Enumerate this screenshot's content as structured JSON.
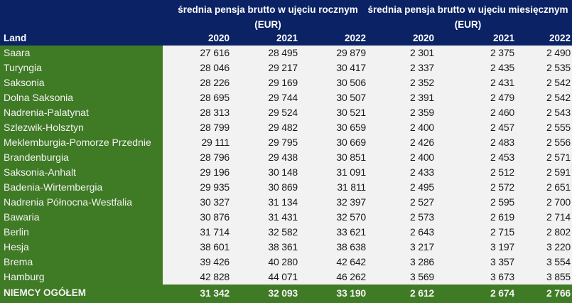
{
  "header": {
    "land_label": "Land",
    "group_annual": {
      "line1": "średnia pensja brutto w ujęciu rocznym",
      "line2": "(EUR)"
    },
    "group_monthly": {
      "line1": "średnia pensja brutto w ujęciu miesięcznym",
      "line2": "(EUR)"
    },
    "years": [
      "2020",
      "2021",
      "2022",
      "2020",
      "2021",
      "2022"
    ]
  },
  "colors": {
    "header_bg": "#0b2265",
    "land_bg": "#3f7a24",
    "cell_bg": "#f2f2f2"
  },
  "rows": [
    {
      "land": "Saara",
      "values": [
        "27 616",
        "28 495",
        "29 879",
        "2 301",
        "2 375",
        "2 490"
      ]
    },
    {
      "land": "Turyngia",
      "values": [
        "28 046",
        "29 217",
        "30 417",
        "2 337",
        "2 435",
        "2 535"
      ]
    },
    {
      "land": "Saksonia",
      "values": [
        "28 226",
        "29 169",
        "30 506",
        "2 352",
        "2 431",
        "2 542"
      ]
    },
    {
      "land": "Dolna Saksonia",
      "values": [
        "28 695",
        "29 744",
        "30 507",
        "2 391",
        "2 479",
        "2 542"
      ]
    },
    {
      "land": "Nadrenia-Palatynat",
      "values": [
        "28 313",
        "29 524",
        "30 521",
        "2 359",
        "2 460",
        "2 543"
      ]
    },
    {
      "land": "Szlezwik-Holsztyn",
      "values": [
        "28 799",
        "29 482",
        "30 659",
        "2 400",
        "2 457",
        "2 555"
      ]
    },
    {
      "land": "Meklemburgia-Pomorze Przednie",
      "values": [
        "29 111",
        "29 795",
        "30 669",
        "2 426",
        "2 483",
        "2 556"
      ]
    },
    {
      "land": "Brandenburgia",
      "values": [
        "28 796",
        "29 438",
        "30 851",
        "2 400",
        "2 453",
        "2 571"
      ]
    },
    {
      "land": "Saksonia-Anhalt",
      "values": [
        "29 196",
        "30 148",
        "31 091",
        "2 433",
        "2 512",
        "2 591"
      ]
    },
    {
      "land": "Badenia-Wirtembergia",
      "values": [
        "29 935",
        "30 869",
        "31 811",
        "2 495",
        "2 572",
        "2 651"
      ]
    },
    {
      "land": "Nadrenia Północna-Westfalia",
      "values": [
        "30 327",
        "31 134",
        "32 397",
        "2 527",
        "2 595",
        "2 700"
      ]
    },
    {
      "land": "Bawaria",
      "values": [
        "30 876",
        "31 431",
        "32 570",
        "2 573",
        "2 619",
        "2 714"
      ]
    },
    {
      "land": "Berlin",
      "values": [
        "31 714",
        "32 582",
        "33 621",
        "2 643",
        "2 715",
        "2 802"
      ]
    },
    {
      "land": "Hesja",
      "values": [
        "38 601",
        "38 361",
        "38 638",
        "3 217",
        "3 197",
        "3 220"
      ]
    },
    {
      "land": "Brema",
      "values": [
        "39 426",
        "40 280",
        "42 642",
        "3 286",
        "3 357",
        "3 554"
      ]
    },
    {
      "land": "Hamburg",
      "values": [
        "42 828",
        "44 071",
        "46 262",
        "3 569",
        "3 673",
        "3 855"
      ]
    }
  ],
  "total": {
    "land": "NIEMCY OGÓŁEM",
    "values": [
      "31 342",
      "32 093",
      "33 190",
      "2 612",
      "2 674",
      "2 766"
    ]
  }
}
